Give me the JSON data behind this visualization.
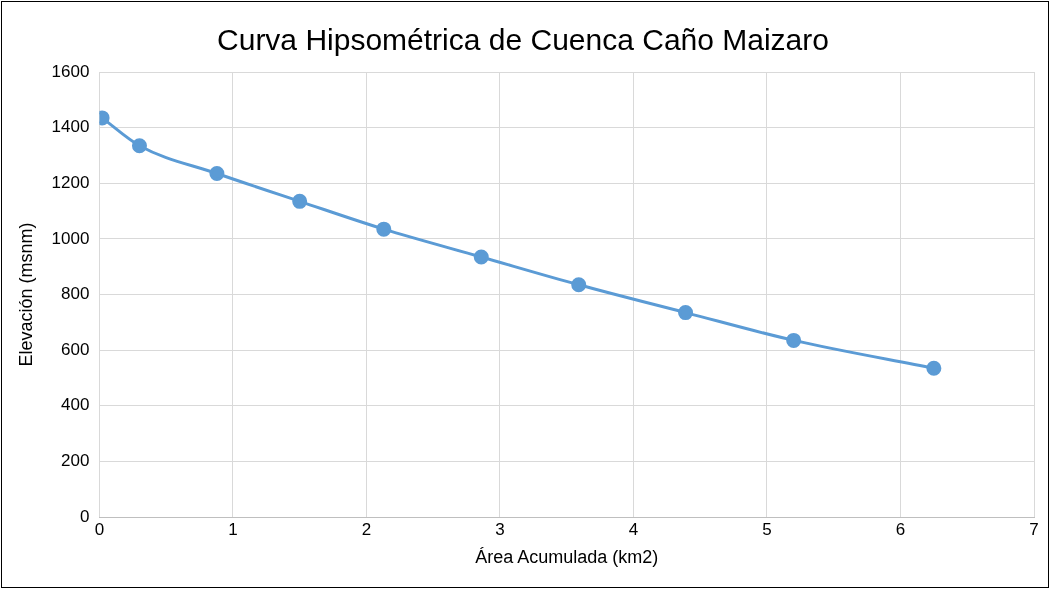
{
  "chart_data": {
    "type": "line",
    "title": "Curva Hipsométrica de Cuenca Caño Maizaro",
    "xlabel": "Área Acumulada (km2)",
    "ylabel": "Elevación (msnm)",
    "x": [
      0.02,
      0.3,
      0.88,
      1.5,
      2.13,
      2.86,
      3.59,
      4.39,
      5.2,
      6.25
    ],
    "series": [
      {
        "color": "#5b9bd5",
        "values": [
          1435,
          1335,
          1235,
          1135,
          1035,
          935,
          835,
          735,
          635,
          535
        ]
      }
    ],
    "xlim": [
      0,
      7
    ],
    "xticks": [
      0,
      1,
      2,
      3,
      4,
      5,
      6,
      7
    ],
    "ylim": [
      0,
      1600
    ],
    "yticks": [
      0,
      200,
      400,
      600,
      800,
      1000,
      1200,
      1400,
      1600
    ],
    "grid": true,
    "legend": false,
    "marker": "circle",
    "line_style": "solid"
  }
}
